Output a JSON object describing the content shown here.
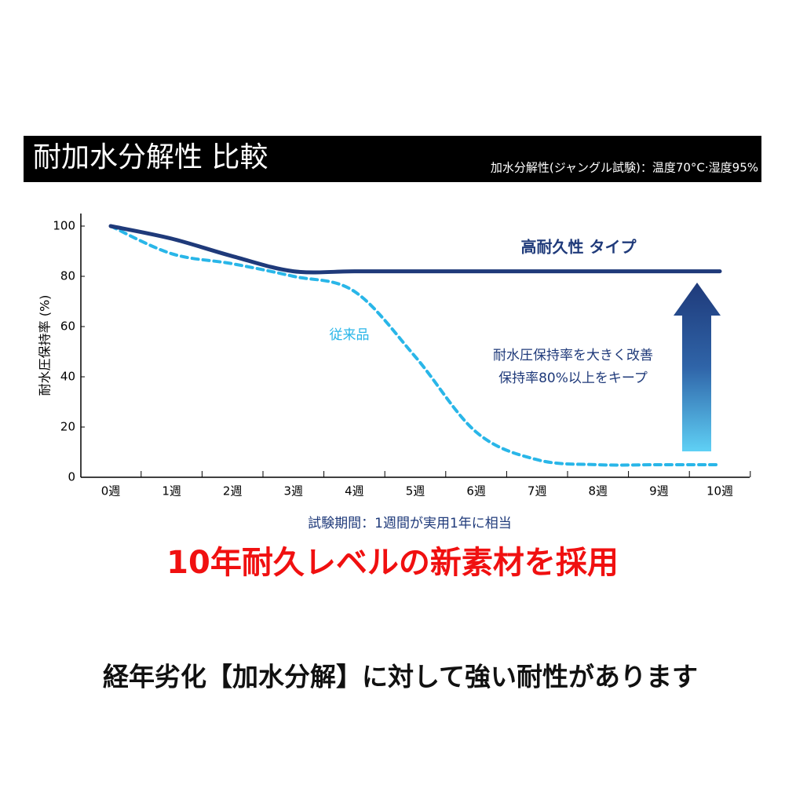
{
  "chart_data": {
    "type": "line",
    "title": "耐加水分解性 比較",
    "subtitle": "加水分解性(ジャングル試験)：温度70°C·湿度95%",
    "x_label": "試験期間：1週間が実用1年に相当",
    "y_label": "耐水圧保持率 (%)",
    "categories": [
      "0週",
      "1週",
      "2週",
      "3週",
      "4週",
      "5週",
      "6週",
      "7週",
      "8週",
      "9週",
      "10週"
    ],
    "series": [
      {
        "name": "高耐久性 タイプ",
        "color": "#1f3a7a",
        "dashed": false,
        "values": [
          100,
          95,
          88,
          82,
          82,
          82,
          82,
          82,
          82,
          82,
          82
        ]
      },
      {
        "name": "従来品",
        "color": "#29b6e8",
        "dashed": true,
        "values": [
          100,
          89,
          85,
          80,
          74,
          48,
          18,
          7,
          5,
          5,
          5
        ]
      }
    ],
    "ylim": [
      0,
      105
    ],
    "yticks": [
      0,
      20,
      40,
      60,
      80,
      100
    ],
    "annotations": [
      "耐水圧保持率を大きく改善",
      "保持率80%以上をキープ"
    ],
    "headline": "10年耐久レベルの新素材を採用",
    "footer": "経年劣化【加水分解】に対して強い耐性があります"
  }
}
